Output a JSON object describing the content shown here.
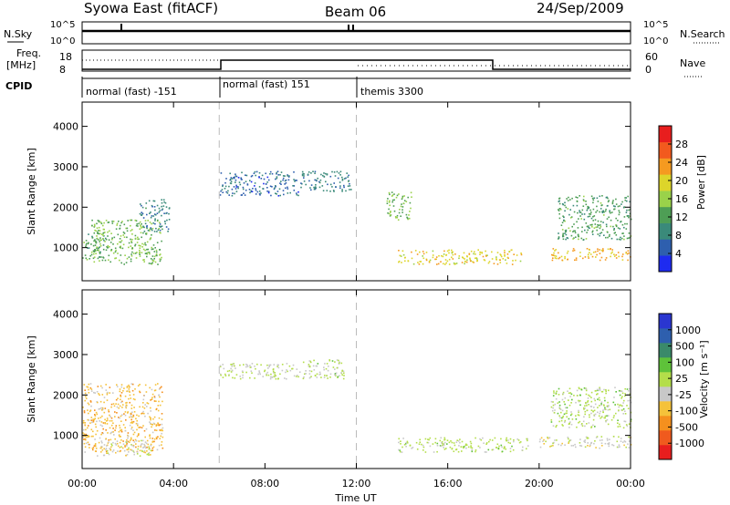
{
  "header": {
    "title": "Syowa East (fitACF)",
    "beam": "Beam 06",
    "date": "24/Sep/2009"
  },
  "summary_panels": {
    "nsky": {
      "label": "N.Sky",
      "ticks": [
        "10^5",
        "10^0"
      ]
    },
    "nsearch": {
      "label": "N.Search",
      "ticks": [
        "10^5",
        "10^0"
      ]
    },
    "freq": {
      "label": "Freq.",
      "unit": "[MHz]",
      "ticks": [
        "18",
        "8"
      ]
    },
    "nave": {
      "label": "Nave",
      "ticks": [
        "60",
        "0"
      ]
    },
    "cpid": {
      "label": "CPID",
      "segments": [
        {
          "name": "normal (fast) -151",
          "start_ut": 0,
          "end_ut": 6
        },
        {
          "name": "normal (fast) 151",
          "start_ut": 6,
          "end_ut": 12
        },
        {
          "name": "themis 3300",
          "start_ut": 12,
          "end_ut": 24
        }
      ]
    }
  },
  "colors": {
    "power_scale": [
      "#1e2bf0",
      "#2e5fae",
      "#3a8a7a",
      "#4e9e55",
      "#9ad24a",
      "#ddd52a",
      "#f59a20",
      "#f25a1e",
      "#e81e1e"
    ],
    "velocity_scale": [
      "#e81e1e",
      "#f05a1e",
      "#f5901e",
      "#f5c23a",
      "#c8c8c8",
      "#b4de4a",
      "#5ec23a",
      "#3a8a6a",
      "#2e5fae",
      "#2a36d0"
    ]
  },
  "chart_data": [
    {
      "type": "heatmap",
      "name": "power",
      "ylabel": "Slant Range [km]",
      "xlabel": "",
      "xlim": [
        0,
        24
      ],
      "ylim": [
        180,
        4600
      ],
      "yticks": [
        "1000",
        "2000",
        "3000",
        "4000"
      ],
      "colorbar": {
        "label": "Power [dB]",
        "ticks": [
          "28",
          "24",
          "20",
          "16",
          "12",
          "8",
          "4"
        ],
        "range": [
          0,
          32
        ]
      },
      "regions": [
        {
          "x": [
            0.0,
            1.0
          ],
          "y": [
            700,
            1400
          ],
          "value": 12
        },
        {
          "x": [
            0.4,
            3.5
          ],
          "y": [
            600,
            1700
          ],
          "value": 14
        },
        {
          "x": [
            2.5,
            3.8
          ],
          "y": [
            1400,
            2200
          ],
          "value": 8
        },
        {
          "x": [
            6.0,
            9.5
          ],
          "y": [
            2300,
            2900
          ],
          "value": 6
        },
        {
          "x": [
            9.5,
            11.8
          ],
          "y": [
            2400,
            2900
          ],
          "value": 8
        },
        {
          "x": [
            13.3,
            14.4
          ],
          "y": [
            1700,
            2400
          ],
          "value": 14
        },
        {
          "x": [
            13.8,
            19.2
          ],
          "y": [
            600,
            960
          ],
          "value": 20
        },
        {
          "x": [
            20.5,
            24.0
          ],
          "y": [
            700,
            1000
          ],
          "value": 22
        },
        {
          "x": [
            20.8,
            24.0
          ],
          "y": [
            1200,
            2300
          ],
          "value": 12
        }
      ]
    },
    {
      "type": "heatmap",
      "name": "velocity",
      "ylabel": "Slant Range [km]",
      "xlabel": "Time UT",
      "xlim": [
        0,
        24
      ],
      "ylim": [
        180,
        4600
      ],
      "xticks": [
        "00:00",
        "04:00",
        "08:00",
        "12:00",
        "16:00",
        "20:00",
        "00:00"
      ],
      "yticks": [
        "1000",
        "2000",
        "3000",
        "4000"
      ],
      "colorbar": {
        "label": "Velocity [m s⁻¹]",
        "ticks": [
          "1000",
          "500",
          "100",
          "25",
          "-25",
          "-100",
          "-500",
          "-1000"
        ],
        "range": [
          -1000,
          1000
        ]
      },
      "regions": [
        {
          "x": [
            0.0,
            3.5
          ],
          "y": [
            600,
            2300
          ],
          "value": -300
        },
        {
          "x": [
            0.5,
            3.0
          ],
          "y": [
            500,
            900
          ],
          "value": -100
        },
        {
          "x": [
            6.0,
            9.5
          ],
          "y": [
            2400,
            2800
          ],
          "value": 0
        },
        {
          "x": [
            9.5,
            11.5
          ],
          "y": [
            2400,
            2900
          ],
          "value": 50
        },
        {
          "x": [
            13.8,
            19.5
          ],
          "y": [
            600,
            960
          ],
          "value": 80
        },
        {
          "x": [
            20.0,
            24.0
          ],
          "y": [
            700,
            1000
          ],
          "value": -80
        },
        {
          "x": [
            20.5,
            24.0
          ],
          "y": [
            1200,
            2200
          ],
          "value": 60
        }
      ]
    }
  ]
}
